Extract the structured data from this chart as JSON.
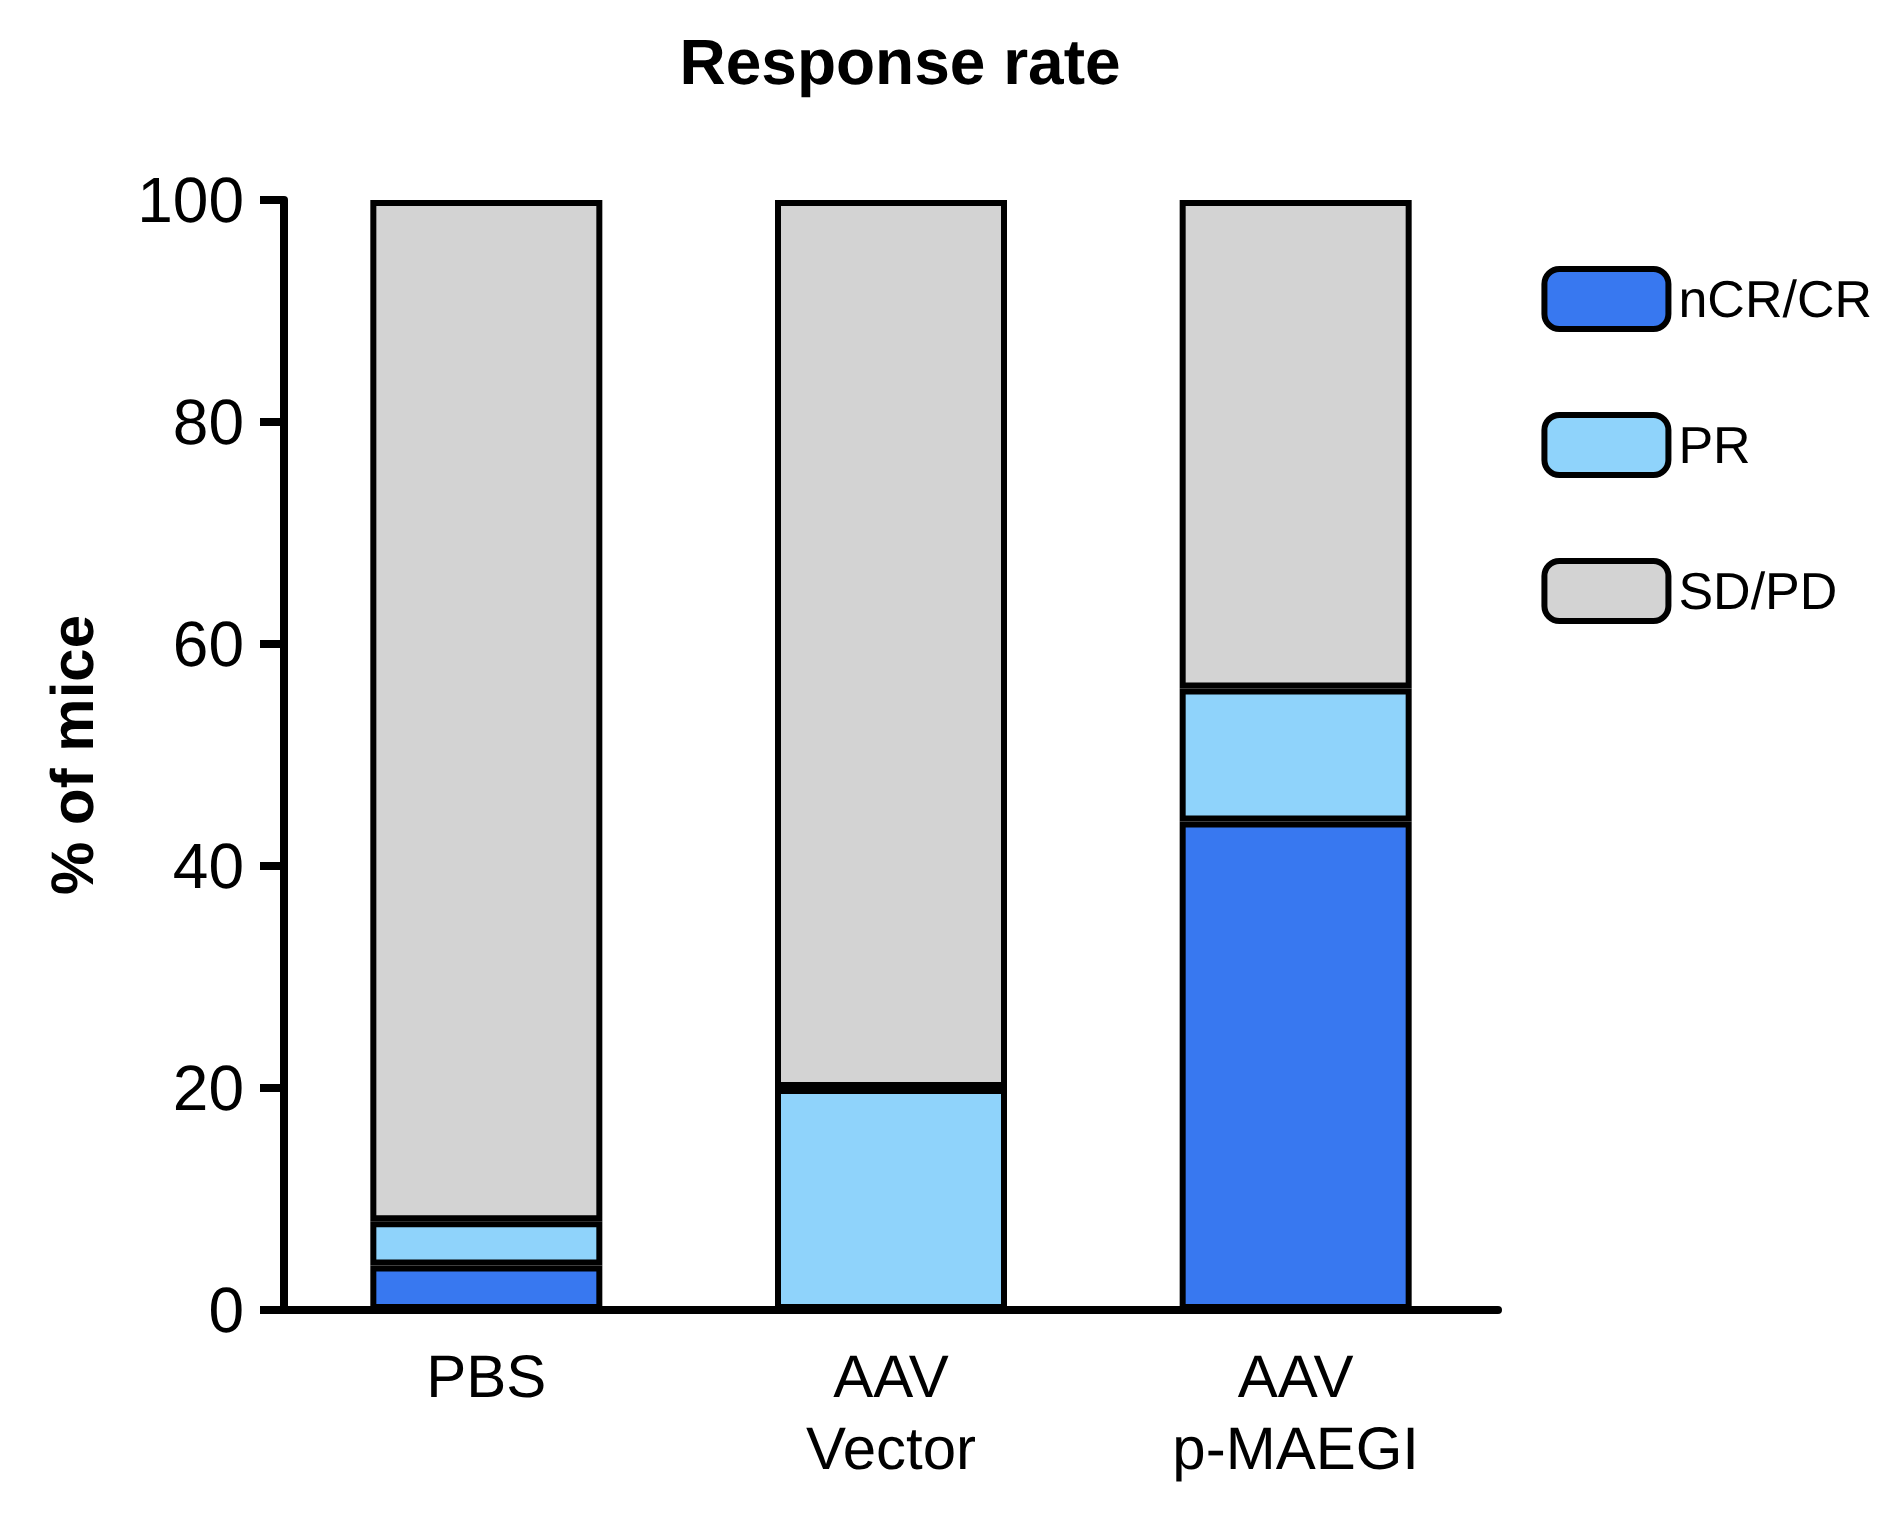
{
  "chart_data": {
    "type": "bar",
    "title": "Response rate",
    "ylabel": "% of mice",
    "categories": [
      "PBS",
      "AAV\nVector",
      "AAV\np-MAEGI"
    ],
    "stacked": true,
    "series": [
      {
        "name": "nCR/CR",
        "color": "#3878f0",
        "values": [
          4,
          0,
          44
        ]
      },
      {
        "name": "PR",
        "color": "#8fd3fb",
        "values": [
          4,
          20,
          12
        ]
      },
      {
        "name": "SD/PD",
        "color": "#d3d3d3",
        "values": [
          92,
          80,
          44
        ]
      }
    ],
    "ylim": [
      0,
      100
    ],
    "yticks": [
      0,
      20,
      40,
      60,
      80,
      100
    ],
    "grid": false,
    "legend": "top right"
  }
}
